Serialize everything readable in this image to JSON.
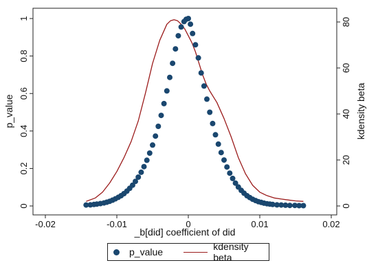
{
  "chart_data": {
    "type": "scatter",
    "title": "",
    "xlabel": "_b[did] coefficient of did",
    "ylabel_left": "p_value",
    "ylabel_right": "kdensity beta",
    "xlim": [
      -0.02,
      0.02
    ],
    "xticks": [
      "-0.02",
      "-0.01",
      "0",
      "0.01",
      "0.02"
    ],
    "xtick_values": [
      -0.02,
      -0.01,
      0,
      0.01,
      0.02
    ],
    "ylim_left": [
      0,
      1
    ],
    "yticks_left": [
      "0",
      "0.2",
      "0.4",
      "0.6",
      "0.8",
      "1"
    ],
    "ytick_left_values": [
      0,
      0.2,
      0.4,
      0.6,
      0.8,
      1
    ],
    "ylim_right": [
      0,
      85
    ],
    "yticks_right": [
      "0",
      "20",
      "40",
      "60",
      "80"
    ],
    "ytick_right_values": [
      0,
      20,
      40,
      60,
      80
    ],
    "grid": false,
    "legend_position": "bottom",
    "colors": {
      "p_value": "#1a476f",
      "kdensity": "#9b1b1b"
    },
    "series": [
      {
        "name": "p_value",
        "type": "scatter",
        "axis": "left",
        "x": [
          -0.0143,
          -0.0137,
          -0.0132,
          -0.0128,
          -0.0123,
          -0.0118,
          -0.0114,
          -0.011,
          -0.0106,
          -0.0102,
          -0.0098,
          -0.0094,
          -0.009,
          -0.0086,
          -0.0082,
          -0.0078,
          -0.0074,
          -0.007,
          -0.0066,
          -0.0062,
          -0.0058,
          -0.0054,
          -0.005,
          -0.0046,
          -0.0042,
          -0.0038,
          -0.0034,
          -0.003,
          -0.0026,
          -0.0022,
          -0.0018,
          -0.0014,
          -0.001,
          -0.0006,
          -0.0003,
          0,
          0.0003,
          0.0006,
          0.001,
          0.0014,
          0.0018,
          0.0022,
          0.0026,
          0.003,
          0.0034,
          0.0038,
          0.0042,
          0.0046,
          0.005,
          0.0054,
          0.0058,
          0.0062,
          0.0066,
          0.007,
          0.0074,
          0.0078,
          0.0082,
          0.0086,
          0.009,
          0.0094,
          0.0098,
          0.0102,
          0.0106,
          0.011,
          0.0114,
          0.0118,
          0.0124,
          0.013,
          0.0136,
          0.0142,
          0.0149,
          0.0155,
          0.0161
        ],
        "y": [
          0.005,
          0.006,
          0.008,
          0.01,
          0.013,
          0.016,
          0.02,
          0.025,
          0.031,
          0.038,
          0.046,
          0.055,
          0.066,
          0.079,
          0.094,
          0.111,
          0.131,
          0.154,
          0.18,
          0.21,
          0.244,
          0.282,
          0.325,
          0.373,
          0.425,
          0.483,
          0.546,
          0.614,
          0.686,
          0.761,
          0.838,
          0.908,
          0.955,
          0.984,
          0.996,
          1.0,
          0.97,
          0.92,
          0.86,
          0.79,
          0.71,
          0.64,
          0.57,
          0.5,
          0.44,
          0.38,
          0.33,
          0.285,
          0.245,
          0.208,
          0.175,
          0.147,
          0.122,
          0.101,
          0.083,
          0.068,
          0.055,
          0.045,
          0.036,
          0.029,
          0.023,
          0.019,
          0.015,
          0.012,
          0.01,
          0.008,
          0.006,
          0.005,
          0.004,
          0.003,
          0.003,
          0.002,
          0.002
        ]
      },
      {
        "name": "kdensity beta",
        "type": "line",
        "axis": "right",
        "x": [
          -0.0143,
          -0.013,
          -0.012,
          -0.011,
          -0.01,
          -0.009,
          -0.008,
          -0.007,
          -0.006,
          -0.005,
          -0.004,
          -0.003,
          -0.0025,
          -0.002,
          -0.0015,
          -0.001,
          -0.0005,
          0,
          0.0005,
          0.001,
          0.0015,
          0.002,
          0.0025,
          0.003,
          0.004,
          0.005,
          0.006,
          0.007,
          0.008,
          0.009,
          0.01,
          0.011,
          0.012,
          0.013,
          0.014,
          0.015,
          0.0161
        ],
        "y": [
          2,
          3.5,
          6,
          10,
          15,
          21,
          28,
          37,
          49,
          62,
          72,
          79,
          80.5,
          81,
          80.5,
          79,
          77,
          74,
          71,
          67,
          62,
          57,
          53,
          50,
          45,
          38,
          30,
          21,
          14,
          9,
          6,
          4.5,
          3.5,
          3,
          2.6,
          2.2,
          2
        ]
      }
    ]
  }
}
